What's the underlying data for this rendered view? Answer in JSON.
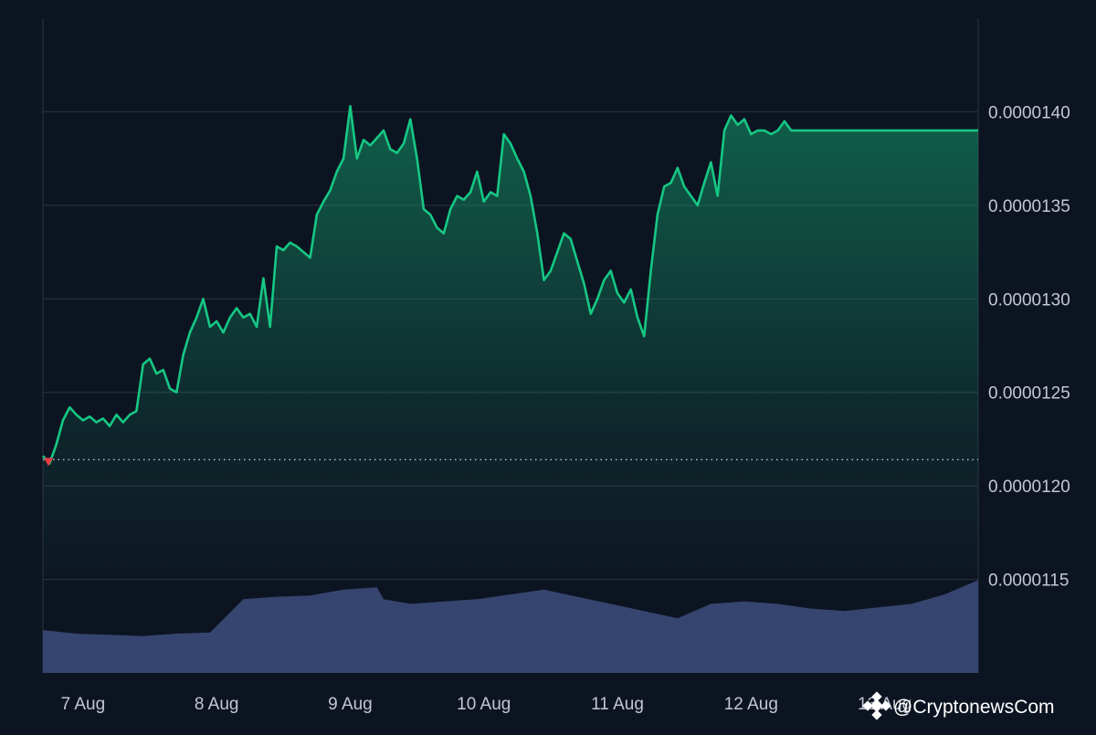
{
  "chart_data": {
    "type": "area",
    "x_ticks": [
      "7 Aug",
      "8 Aug",
      "9 Aug",
      "10 Aug",
      "11 Aug",
      "12 Aug",
      "13 Aug"
    ],
    "y_ticks": [
      "0.0000140",
      "0.0000135",
      "0.0000130",
      "0.0000125",
      "0.0000120",
      "0.0000115"
    ],
    "ylim": [
      1.1e-05,
      1.45e-05
    ],
    "xlim": [
      0,
      7
    ],
    "grid": true,
    "reference_line": 1.214e-05,
    "series": [
      {
        "type": "area",
        "color": "#16c784",
        "x": [
          0.0,
          0.05,
          0.1,
          0.15,
          0.2,
          0.25,
          0.3,
          0.35,
          0.4,
          0.45,
          0.5,
          0.55,
          0.6,
          0.65,
          0.7,
          0.75,
          0.8,
          0.85,
          0.9,
          0.95,
          1.0,
          1.05,
          1.1,
          1.15,
          1.2,
          1.25,
          1.3,
          1.35,
          1.4,
          1.45,
          1.5,
          1.55,
          1.6,
          1.65,
          1.7,
          1.75,
          1.8,
          1.85,
          1.9,
          1.95,
          2.0,
          2.05,
          2.1,
          2.15,
          2.2,
          2.25,
          2.3,
          2.35,
          2.4,
          2.45,
          2.5,
          2.55,
          2.6,
          2.65,
          2.7,
          2.75,
          2.8,
          2.85,
          2.9,
          2.95,
          3.0,
          3.05,
          3.1,
          3.15,
          3.2,
          3.25,
          3.3,
          3.35,
          3.4,
          3.45,
          3.5,
          3.55,
          3.6,
          3.65,
          3.7,
          3.75,
          3.8,
          3.85,
          3.9,
          3.95,
          4.0,
          4.05,
          4.1,
          4.15,
          4.2,
          4.25,
          4.3,
          4.35,
          4.4,
          4.45,
          4.5,
          4.55,
          4.6,
          4.65,
          4.7,
          4.75,
          4.8,
          4.85,
          4.9,
          4.95,
          5.0,
          5.05,
          5.1,
          5.15,
          5.2,
          5.25,
          5.3,
          5.35,
          5.4,
          5.45,
          5.5,
          5.55,
          5.6,
          5.65,
          5.7,
          5.75,
          5.8,
          5.85,
          5.9,
          5.95,
          6.0,
          6.05,
          6.1,
          6.15,
          6.2,
          6.25,
          6.3,
          6.35,
          6.4,
          6.45,
          6.5,
          6.55,
          6.6,
          6.65,
          6.7,
          6.75,
          6.8,
          6.85,
          6.9,
          6.95,
          7.0
        ],
        "values": [
          1.216e-05,
          1.212e-05,
          1.222e-05,
          1.235e-05,
          1.242e-05,
          1.238e-05,
          1.235e-05,
          1.237e-05,
          1.234e-05,
          1.236e-05,
          1.232e-05,
          1.238e-05,
          1.234e-05,
          1.238e-05,
          1.24e-05,
          1.265e-05,
          1.268e-05,
          1.26e-05,
          1.262e-05,
          1.252e-05,
          1.25e-05,
          1.27e-05,
          1.282e-05,
          1.29e-05,
          1.3e-05,
          1.285e-05,
          1.288e-05,
          1.282e-05,
          1.29e-05,
          1.295e-05,
          1.29e-05,
          1.292e-05,
          1.285e-05,
          1.311e-05,
          1.285e-05,
          1.328e-05,
          1.326e-05,
          1.33e-05,
          1.328e-05,
          1.325e-05,
          1.322e-05,
          1.345e-05,
          1.352e-05,
          1.358e-05,
          1.368e-05,
          1.375e-05,
          1.403e-05,
          1.375e-05,
          1.385e-05,
          1.382e-05,
          1.386e-05,
          1.39e-05,
          1.38e-05,
          1.378e-05,
          1.383e-05,
          1.396e-05,
          1.375e-05,
          1.348e-05,
          1.345e-05,
          1.338e-05,
          1.335e-05,
          1.348e-05,
          1.355e-05,
          1.353e-05,
          1.357e-05,
          1.368e-05,
          1.352e-05,
          1.357e-05,
          1.355e-05,
          1.388e-05,
          1.383e-05,
          1.375e-05,
          1.368e-05,
          1.355e-05,
          1.335e-05,
          1.31e-05,
          1.315e-05,
          1.325e-05,
          1.335e-05,
          1.332e-05,
          1.32e-05,
          1.308e-05,
          1.292e-05,
          1.3e-05,
          1.31e-05,
          1.315e-05,
          1.303e-05,
          1.298e-05,
          1.305e-05,
          1.29e-05,
          1.28e-05,
          1.315e-05,
          1.345e-05,
          1.36e-05,
          1.362e-05,
          1.37e-05,
          1.36e-05,
          1.355e-05,
          1.35e-05,
          1.362e-05,
          1.373e-05,
          1.355e-05,
          1.39e-05,
          1.398e-05,
          1.393e-05,
          1.396e-05,
          1.388e-05,
          1.39e-05,
          1.39e-05,
          1.388e-05,
          1.39e-05,
          1.395e-05,
          1.39e-05,
          1.39e-05,
          1.39e-05,
          1.39e-05,
          1.39e-05,
          1.39e-05,
          1.39e-05,
          1.39e-05,
          1.39e-05,
          1.39e-05,
          1.39e-05,
          1.39e-05,
          1.39e-05,
          1.39e-05,
          1.39e-05,
          1.39e-05,
          1.39e-05,
          1.39e-05,
          1.39e-05,
          1.39e-05,
          1.39e-05,
          1.39e-05,
          1.39e-05,
          1.39e-05,
          1.39e-05,
          1.39e-05,
          1.39e-05,
          1.39e-05,
          1.39e-05
        ]
      },
      {
        "type": "volume",
        "color": "#3a4a78",
        "x": [
          0.0,
          0.25,
          0.5,
          0.75,
          1.0,
          1.25,
          1.5,
          1.75,
          2.0,
          2.25,
          2.5,
          2.55,
          2.75,
          3.0,
          3.25,
          3.5,
          3.75,
          4.0,
          4.25,
          4.5,
          4.75,
          5.0,
          5.25,
          5.5,
          5.75,
          6.0,
          6.25,
          6.5,
          6.75,
          7.0
        ],
        "values": [
          0.36,
          0.33,
          0.32,
          0.31,
          0.33,
          0.34,
          0.62,
          0.64,
          0.65,
          0.7,
          0.72,
          0.62,
          0.58,
          0.6,
          0.62,
          0.66,
          0.7,
          0.64,
          0.58,
          0.52,
          0.46,
          0.58,
          0.6,
          0.58,
          0.54,
          0.52,
          0.55,
          0.58,
          0.66,
          0.78
        ]
      }
    ]
  },
  "watermark": {
    "text": "@CryptonewsCom",
    "icon": "binance-diamond-icon"
  }
}
